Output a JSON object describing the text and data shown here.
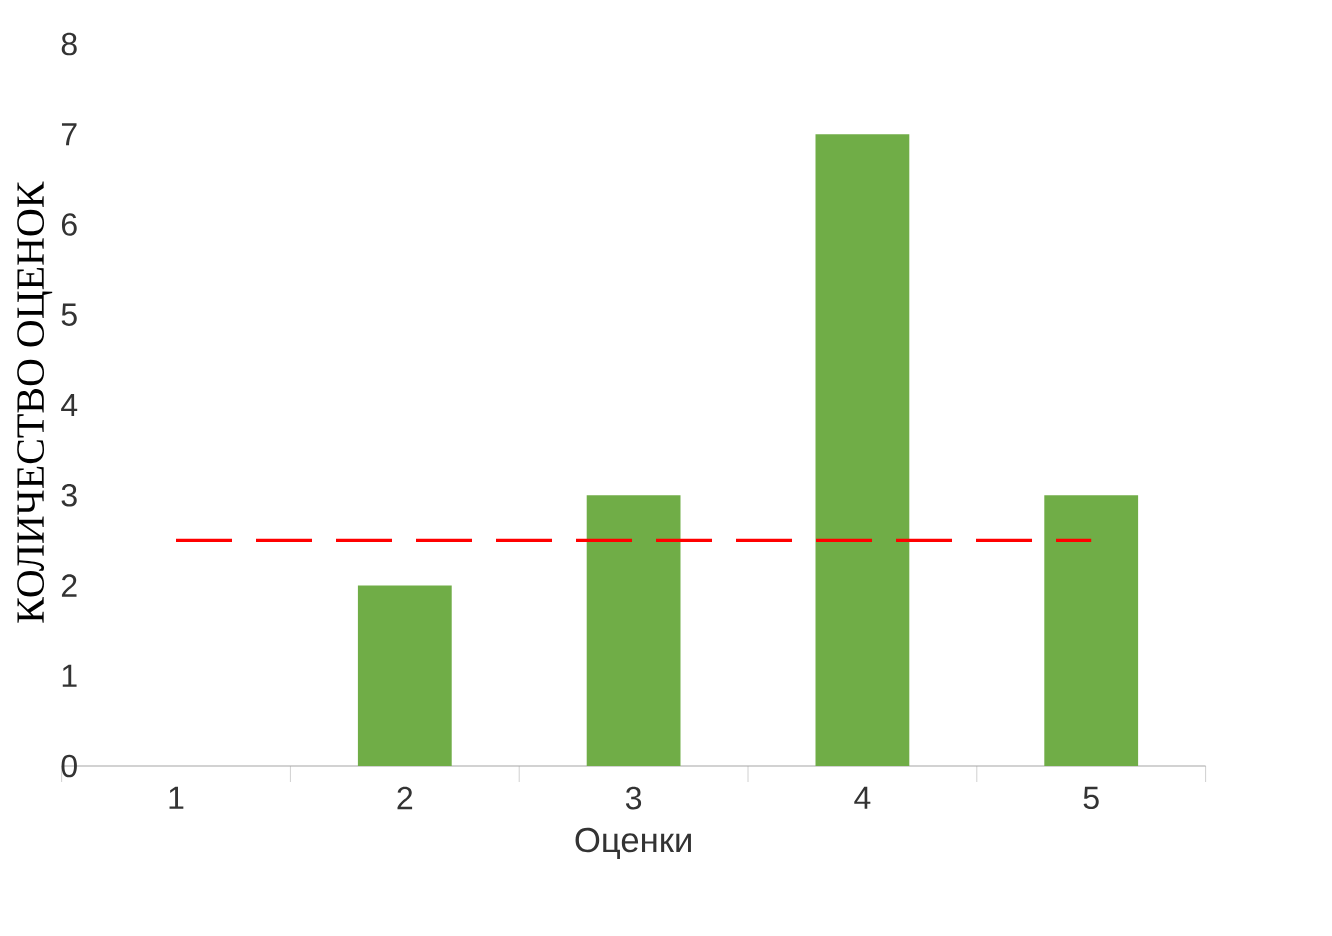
{
  "chart_data": {
    "type": "bar",
    "xlabel": "Оценки",
    "ylabel": "КОЛИЧЕСТВО ОЦЕНОК",
    "categories": [
      "1",
      "2",
      "3",
      "4",
      "5"
    ],
    "series": [
      {
        "type": "bar",
        "color": "#70ad47",
        "values": [
          0,
          2,
          3,
          7,
          3
        ]
      },
      {
        "type": "line",
        "color": "#ff0000",
        "line_style": "dashed",
        "values": [
          2.5,
          2.5,
          2.5,
          2.5,
          2.5
        ]
      }
    ],
    "ylim": [
      0,
      8
    ],
    "yticks": [
      0,
      1,
      2,
      3,
      4,
      5,
      6,
      7,
      8
    ]
  }
}
